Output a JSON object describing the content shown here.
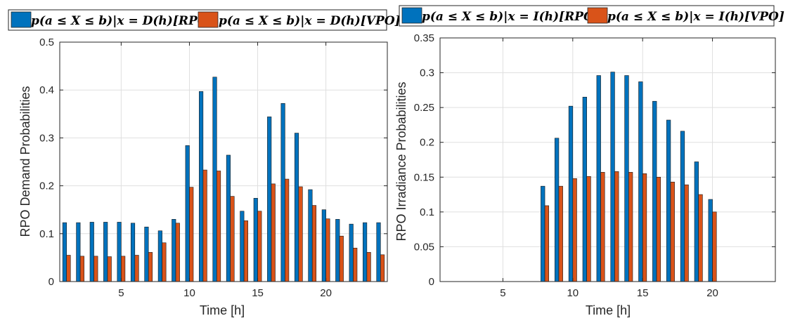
{
  "colors": {
    "rpo": "#0072BD",
    "vpo": "#D95319",
    "grid": "#dfdfdf",
    "axis": "#262626"
  },
  "chart_data": [
    {
      "type": "bar",
      "xlabel": "Time [h]",
      "ylabel": "RPO Demand Probabilities",
      "xlim": [
        0.5,
        24.5
      ],
      "ylim": [
        0,
        0.5
      ],
      "xticks": [
        5,
        10,
        15,
        20
      ],
      "yticks": [
        0,
        0.1,
        0.2,
        0.3,
        0.4,
        0.5
      ],
      "ytick_labels": [
        "0",
        "0.1",
        "0.2",
        "0.3",
        "0.4",
        "0.5"
      ],
      "grid": true,
      "legend_position": "top",
      "x": [
        1,
        2,
        3,
        4,
        5,
        6,
        7,
        8,
        9,
        10,
        11,
        12,
        13,
        14,
        15,
        16,
        17,
        18,
        19,
        20,
        21,
        22,
        23,
        24
      ],
      "series": [
        {
          "name": "p(a ≤ X ≤ b)|x = D(h)[RPO]",
          "color_key": "rpo",
          "values": [
            0.123,
            0.123,
            0.124,
            0.124,
            0.124,
            0.122,
            0.114,
            0.106,
            0.13,
            0.284,
            0.397,
            0.427,
            0.264,
            0.147,
            0.174,
            0.344,
            0.372,
            0.31,
            0.192,
            0.15,
            0.13,
            0.12,
            0.123,
            0.123
          ]
        },
        {
          "name": "p(a ≤ X ≤ b)|x = D(h)[VPO]",
          "color_key": "vpo",
          "values": [
            0.055,
            0.053,
            0.053,
            0.052,
            0.053,
            0.055,
            0.061,
            0.081,
            0.122,
            0.197,
            0.233,
            0.231,
            0.178,
            0.127,
            0.147,
            0.204,
            0.214,
            0.198,
            0.159,
            0.131,
            0.095,
            0.07,
            0.061,
            0.056
          ]
        }
      ]
    },
    {
      "type": "bar",
      "xlabel": "Time [h]",
      "ylabel": "RPO Irradiance Probabilities",
      "xlim": [
        0.5,
        24.5
      ],
      "ylim": [
        0,
        0.35
      ],
      "xticks": [
        5,
        10,
        15,
        20
      ],
      "yticks": [
        0,
        0.05,
        0.1,
        0.15,
        0.2,
        0.25,
        0.3,
        0.35
      ],
      "ytick_labels": [
        "0",
        "0.05",
        "0.1",
        "0.15",
        "0.2",
        "0.25",
        "0.3",
        "0.35"
      ],
      "grid": true,
      "legend_position": "top",
      "x": [
        1,
        2,
        3,
        4,
        5,
        6,
        7,
        8,
        9,
        10,
        11,
        12,
        13,
        14,
        15,
        16,
        17,
        18,
        19,
        20,
        21,
        22,
        23,
        24
      ],
      "series": [
        {
          "name": "p(a ≤ X ≤ b)|x = I(h)[RPO]",
          "color_key": "rpo",
          "values": [
            0,
            0,
            0,
            0,
            0,
            0,
            0,
            0.137,
            0.206,
            0.252,
            0.265,
            0.296,
            0.301,
            0.296,
            0.287,
            0.259,
            0.232,
            0.216,
            0.172,
            0.118,
            0,
            0,
            0,
            0
          ]
        },
        {
          "name": "p(a ≤ X ≤ b)|x = I(h)[VPO]",
          "color_key": "vpo",
          "values": [
            0,
            0,
            0,
            0,
            0,
            0,
            0,
            0.109,
            0.137,
            0.148,
            0.151,
            0.157,
            0.158,
            0.157,
            0.155,
            0.15,
            0.143,
            0.139,
            0.125,
            0.1,
            0,
            0,
            0,
            0
          ]
        }
      ]
    }
  ]
}
